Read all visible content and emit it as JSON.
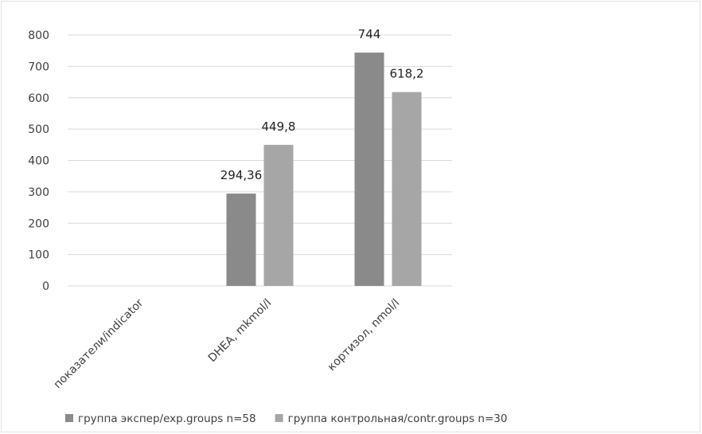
{
  "chart_data": {
    "type": "bar",
    "title": "",
    "xlabel": "",
    "ylabel": "",
    "categories": [
      "показатели/indicator",
      "DHEA, mkmol/l",
      "кортизол, nmol/l"
    ],
    "series": [
      {
        "name": "группа экспер/exp.groups n=58",
        "values": [
          null,
          294.36,
          744
        ],
        "labels": [
          "",
          "294,36",
          "744"
        ],
        "color": "#8a8a8a"
      },
      {
        "name": "группа контрольная/contr.groups n=30",
        "values": [
          null,
          449.8,
          618.2
        ],
        "labels": [
          "",
          "449,8",
          "618,2"
        ],
        "color": "#a6a6a6"
      }
    ],
    "ylim": [
      0,
      800
    ],
    "yticks": [
      0,
      100,
      200,
      300,
      400,
      500,
      600,
      700,
      800
    ],
    "grid": true,
    "legend": "bottom"
  },
  "style": {
    "grid_color": "#d9d9d9",
    "text_color": "#404040"
  }
}
